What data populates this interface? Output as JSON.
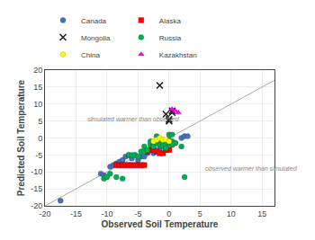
{
  "chart_data": {
    "type": "scatter",
    "xlabel": "Observed Soil Temperature",
    "ylabel": "Predicted Soil Temperature",
    "xlim": [
      -20,
      17
    ],
    "ylim": [
      -20,
      20
    ],
    "xticks": [
      -20,
      -15,
      -10,
      -5,
      0,
      5,
      10,
      15
    ],
    "yticks": [
      -20,
      -15,
      -10,
      -5,
      0,
      5,
      10,
      15,
      20
    ],
    "grid": true,
    "legend": "upper left",
    "series": [
      {
        "type": "line",
        "line_style": "solid",
        "color": "#AAAAAA",
        "x": [
          -20,
          20
        ],
        "values": [
          -20,
          20
        ]
      },
      {
        "name": "Canada",
        "type": "scatter",
        "marker": "circle",
        "color": "#4472C4",
        "x": [
          -17.5,
          -11.0,
          -10.5,
          -9.5,
          -9.0,
          -8.5,
          -8.0,
          -7.5,
          -7.0,
          -6.5,
          -6.0,
          -5.5,
          -5.0,
          -4.5,
          -4.0,
          -3.5,
          -3.0,
          -2.5,
          -2.0,
          -1.5,
          -1.0,
          -0.5,
          0.0,
          0.5,
          1.0,
          2.0,
          2.5,
          3.0
        ],
        "values": [
          -18.5,
          -10.5,
          -11.0,
          -8.5,
          -8.0,
          -7.5,
          -7.0,
          -6.5,
          -5.5,
          -5.0,
          -6.0,
          -5.0,
          -6.5,
          -5.5,
          -5.5,
          -4.5,
          -3.5,
          -4.5,
          -4.0,
          -3.0,
          -2.5,
          -3.5,
          -3.5,
          -2.0,
          -1.5,
          0.0,
          0.5,
          0.5
        ]
      },
      {
        "name": "Alaska",
        "type": "scatter",
        "marker": "square",
        "color": "#FF0000",
        "x": [
          -8.5,
          -8.0,
          -7.5,
          -7.0,
          -6.5,
          -6.0,
          -5.5,
          -5.0,
          -4.5,
          -4.0,
          -3.5,
          -3.0,
          -2.5,
          -2.0,
          -1.5,
          -1.0,
          -0.5,
          0.0
        ],
        "values": [
          -8.0,
          -8.0,
          -8.0,
          -8.0,
          -8.0,
          -8.0,
          -8.0,
          -8.0,
          -8.0,
          -8.0,
          -4.0,
          -3.5,
          -3.5,
          -4.0,
          -4.5,
          -4.5,
          -3.5,
          -3.5
        ]
      },
      {
        "name": "Mongolia",
        "type": "scatter",
        "marker": "x",
        "color": "#1a1a1a",
        "x": [
          -1.5,
          -0.5,
          0.0,
          0.0,
          0.5,
          0.5
        ],
        "values": [
          15.5,
          7.0,
          5.0,
          5.5,
          8.0,
          7.5
        ]
      },
      {
        "name": "Russia",
        "type": "scatter",
        "marker": "circle",
        "color": "#00B050",
        "x": [
          -10.5,
          -10.0,
          -9.5,
          -8.5,
          -7.5,
          -6.5,
          -6.0,
          -5.5,
          -5.0,
          -4.5,
          -4.0,
          -4.0,
          -3.5,
          -3.0,
          -3.0,
          -2.5,
          -2.5,
          -2.0,
          -2.0,
          -1.5,
          -1.5,
          -1.0,
          -1.0,
          -0.5,
          -0.5,
          -0.5,
          0.0,
          0.0,
          0.0,
          0.5,
          0.5,
          0.5,
          1.0,
          2.0,
          2.5
        ],
        "values": [
          -12.0,
          -11.5,
          -10.5,
          -11.5,
          -12.0,
          -5.0,
          -5.0,
          -5.0,
          -5.5,
          -4.0,
          -4.0,
          -2.5,
          -3.5,
          -2.0,
          -1.0,
          -2.0,
          -2.5,
          -1.5,
          0.5,
          -1.5,
          -2.0,
          -1.5,
          -2.5,
          -2.5,
          -2.0,
          -3.0,
          -1.5,
          -0.5,
          1.0,
          -1.0,
          -2.0,
          1.0,
          -1.5,
          -2.5,
          -11.5
        ]
      },
      {
        "name": "China",
        "type": "scatter",
        "marker": "circle",
        "color": "#FFFF00",
        "x": [
          -2.5,
          -2.0,
          -1.5,
          -1.0,
          -0.5,
          0.0
        ],
        "values": [
          -1.0,
          -0.5,
          0.0,
          -0.5,
          -0.5,
          -1.0
        ]
      },
      {
        "name": "Kazakhstan",
        "type": "scatter",
        "marker": "triangle",
        "color": "#FF00FF",
        "x": [
          0.5,
          1.0,
          1.5
        ],
        "values": [
          8.5,
          8.0,
          7.5
        ]
      }
    ],
    "annotations": [
      {
        "text": "simulated warmer than observed",
        "x": -13.5,
        "y": 4.0
      },
      {
        "text": "observed warmer than simulated",
        "x": 5.5,
        "y": -10.5
      }
    ]
  }
}
